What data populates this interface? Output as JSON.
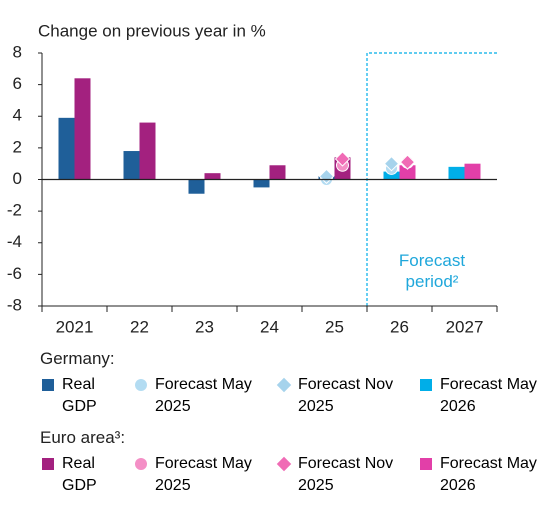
{
  "chart_data": {
    "type": "bar",
    "title": "Change on previous year in %",
    "categories": [
      "2021",
      "22",
      "23",
      "24",
      "25",
      "26",
      "2027"
    ],
    "ylim": [
      -8,
      8
    ],
    "yticks": [
      -8,
      -6,
      -4,
      -2,
      0,
      2,
      4,
      6,
      8
    ],
    "annotation": "Forecast period²",
    "forecast_start_index": 5,
    "groups": [
      {
        "name": "Germany:",
        "series": [
          {
            "name": "Real GDP",
            "marker": "bar",
            "color": "#1f5f99",
            "values": [
              3.9,
              1.8,
              -0.9,
              -0.5,
              0.2,
              null,
              null
            ]
          },
          {
            "name": "Forecast May 2025",
            "marker": "circle",
            "color": "#b3dcf2",
            "values": [
              null,
              null,
              null,
              null,
              0.0,
              0.7,
              null
            ]
          },
          {
            "name": "Forecast Nov 2025",
            "marker": "diamond",
            "color": "#a6d3ec",
            "values": [
              null,
              null,
              null,
              null,
              0.2,
              1.0,
              null
            ]
          },
          {
            "name": "Forecast May 2026",
            "marker": "bar",
            "color": "#00aee8",
            "values": [
              null,
              null,
              null,
              null,
              null,
              0.5,
              0.8
            ]
          }
        ]
      },
      {
        "name": "Euro area³:",
        "series": [
          {
            "name": "Real GDP",
            "marker": "bar",
            "color": "#a3217f",
            "values": [
              6.4,
              3.6,
              0.4,
              0.9,
              1.4,
              null,
              null
            ]
          },
          {
            "name": "Forecast May 2025",
            "marker": "circle",
            "color": "#f48fc6",
            "values": [
              null,
              null,
              null,
              null,
              0.9,
              1.1,
              null
            ]
          },
          {
            "name": "Forecast Nov 2025",
            "marker": "diamond",
            "color": "#f06bb5",
            "values": [
              null,
              null,
              null,
              null,
              1.3,
              1.1,
              null
            ]
          },
          {
            "name": "Forecast May 2026",
            "marker": "bar",
            "color": "#e23fa8",
            "values": [
              null,
              null,
              null,
              null,
              null,
              0.9,
              1.0
            ]
          }
        ]
      }
    ]
  }
}
